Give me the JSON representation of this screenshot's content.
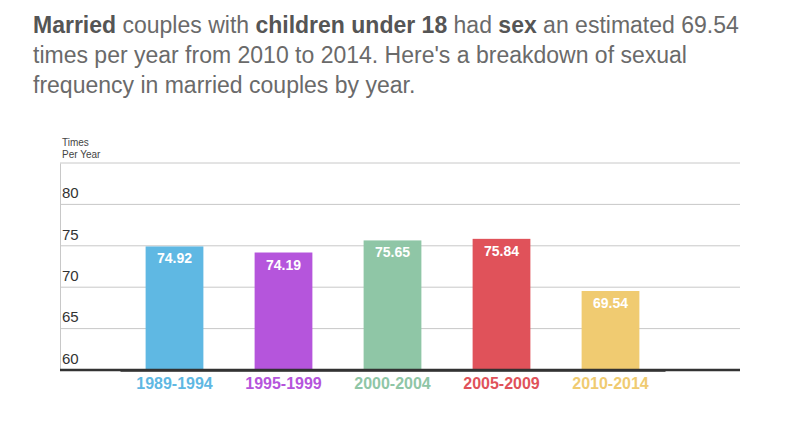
{
  "chart_data": {
    "type": "bar",
    "title": "Married couples with children under 18 had sex an estimated 69.54 times per year from 2010 to 2014. Here's a breakdown of sexual frequency in married couples by year.",
    "y_label": "Times Per Year",
    "categories": [
      "1989-1994",
      "1995-1999",
      "2000-2004",
      "2005-2009",
      "2010-2014"
    ],
    "values": [
      74.92,
      74.19,
      75.65,
      75.84,
      69.54
    ],
    "colors": [
      "#5fb8e3",
      "#b555dc",
      "#8fc6a6",
      "#e0525a",
      "#f0cb71"
    ],
    "ylim": [
      60,
      85
    ],
    "yticks": [
      60,
      65,
      70,
      75,
      80
    ],
    "grid": true,
    "data_labels": true
  }
}
